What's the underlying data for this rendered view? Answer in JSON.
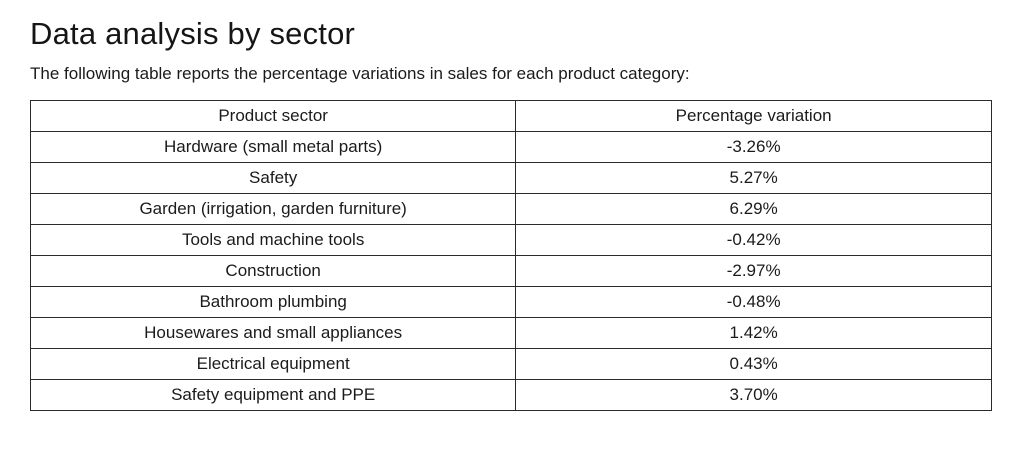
{
  "page": {
    "title": "Data analysis by sector",
    "subtitle": "The following table reports the percentage variations in sales for each product category:"
  },
  "table": {
    "headers": [
      "Product sector",
      "Percentage variation"
    ],
    "rows": [
      [
        "Hardware (small metal parts)",
        "-3.26%"
      ],
      [
        "Safety",
        "5.27%"
      ],
      [
        "Garden (irrigation, garden furniture)",
        "6.29%"
      ],
      [
        "Tools and machine tools",
        "-0.42%"
      ],
      [
        "Construction",
        "-2.97%"
      ],
      [
        "Bathroom plumbing",
        "-0.48%"
      ],
      [
        "Housewares and small appliances",
        "1.42%"
      ],
      [
        "Electrical equipment",
        "0.43%"
      ],
      [
        "Safety equipment and PPE",
        "3.70%"
      ]
    ]
  }
}
